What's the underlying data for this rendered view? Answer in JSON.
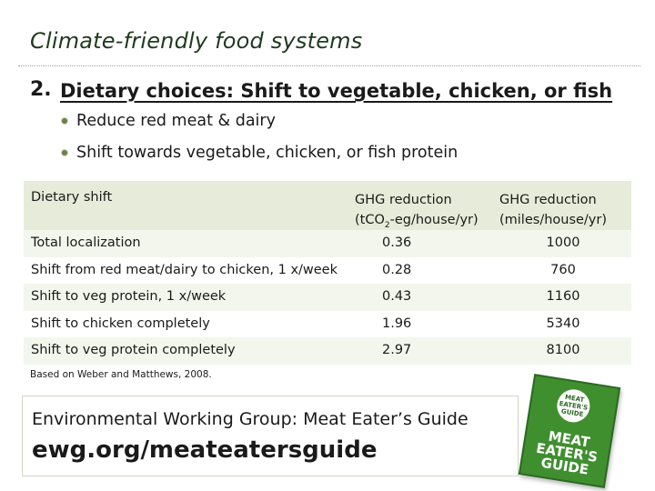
{
  "title": "Climate-friendly food systems",
  "heading": {
    "number": "2.",
    "text": "Dietary choices: Shift to vegetable, chicken, or fish"
  },
  "bullets": [
    "Reduce red meat & dairy",
    "Shift towards vegetable, chicken, or fish protein"
  ],
  "table": {
    "headers": {
      "col1": "Dietary shift",
      "col2_line1": "GHG reduction",
      "col2_line2_pre": "(tCO",
      "col2_sub": "2",
      "col2_line2_post": "-eg/house/yr)",
      "col3_line1": "GHG reduction",
      "col3_line2": "(miles/house/yr)"
    },
    "rows": [
      {
        "shift": "Total localization",
        "tco2": "0.36",
        "miles": "1000"
      },
      {
        "shift": "Shift from red meat/dairy to chicken, 1 x/week",
        "tco2": "0.28",
        "miles": "760"
      },
      {
        "shift": "Shift to veg protein, 1 x/week",
        "tco2": "0.43",
        "miles": "1160"
      },
      {
        "shift": "Shift to chicken completely",
        "tco2": "1.96",
        "miles": "5340"
      },
      {
        "shift": "Shift to veg protein completely",
        "tco2": "2.97",
        "miles": "8100"
      }
    ]
  },
  "note": "Based on Weber and Matthews, 2008.",
  "source": {
    "label": "Environmental Working Group: Meat Eater’s Guide",
    "url": "ewg.org/meateatersguide"
  },
  "guide_cover": {
    "badge": "MEAT EATER'S GUIDE",
    "title": "MEAT EATER'S GUIDE"
  }
}
